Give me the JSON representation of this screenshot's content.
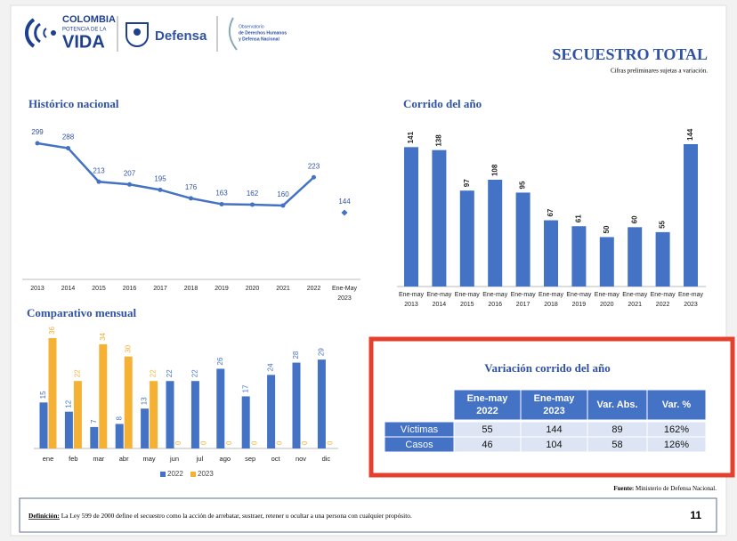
{
  "header": {
    "brand": [
      "COLOMBIA",
      "POTENCIA DE LA",
      "VIDA"
    ],
    "ministry": "Defensa",
    "observatory": [
      "Observatorio",
      "de Derechos Humanos",
      "y Defensa Nacional"
    ],
    "title": "SECUESTRO TOTAL",
    "subtitle": "Cifras preliminares sujetas a variación."
  },
  "chart_data": [
    {
      "type": "line",
      "title": "Histórico nacional",
      "categories": [
        [
          "2013"
        ],
        [
          "2014"
        ],
        [
          "2015"
        ],
        [
          "2016"
        ],
        [
          "2017"
        ],
        [
          "2018"
        ],
        [
          "2019"
        ],
        [
          "2020"
        ],
        [
          "2021"
        ],
        [
          "2022"
        ],
        [
          "Ene-May",
          "2023"
        ]
      ],
      "series": [
        {
          "color": "#4472c4",
          "values": [
            299,
            288,
            213,
            207,
            195,
            176,
            163,
            162,
            160,
            223,
            null
          ]
        },
        {
          "color": "#4472c4",
          "values": [
            null,
            null,
            null,
            null,
            null,
            null,
            null,
            null,
            null,
            null,
            144
          ]
        }
      ]
    },
    {
      "type": "bar",
      "title": "Corrido del año",
      "categories": [
        [
          "Ene-may",
          "2013"
        ],
        [
          "Ene-may",
          "2014"
        ],
        [
          "Ene-may",
          "2015"
        ],
        [
          "Ene-may",
          "2016"
        ],
        [
          "Ene-may",
          "2017"
        ],
        [
          "Ene-may",
          "2018"
        ],
        [
          "Ene-may",
          "2019"
        ],
        [
          "Ene-may",
          "2020"
        ],
        [
          "Ene-may",
          "2021"
        ],
        [
          "Ene-may",
          "2022"
        ],
        [
          "Ene-may",
          "2023"
        ]
      ],
      "series": [
        {
          "color": "#4472c4",
          "values": [
            141,
            138,
            97,
            108,
            95,
            67,
            61,
            50,
            60,
            55,
            144
          ]
        }
      ]
    },
    {
      "type": "bar",
      "title": "Comparativo mensual",
      "legend": "bottom",
      "categories": [
        [
          "ene"
        ],
        [
          "feb"
        ],
        [
          "mar"
        ],
        [
          "abr"
        ],
        [
          "may"
        ],
        [
          "jun"
        ],
        [
          "jul"
        ],
        [
          "ago"
        ],
        [
          "sep"
        ],
        [
          "oct"
        ],
        [
          "nov"
        ],
        [
          "dic"
        ]
      ],
      "series": [
        {
          "name": "2022",
          "color": "#4472c4",
          "values": [
            15,
            12,
            7,
            8,
            13,
            22,
            22,
            26,
            17,
            24,
            28,
            29
          ]
        },
        {
          "name": "2023",
          "color": "#f4b133",
          "values": [
            36,
            22,
            34,
            30,
            22,
            0,
            0,
            0,
            0,
            0,
            0,
            0
          ]
        }
      ]
    }
  ],
  "table": {
    "title": "Variación corrido del año",
    "columns": [
      [
        "Ene-may",
        "2022"
      ],
      [
        "Ene-may",
        "2023"
      ],
      [
        "Var. Abs."
      ],
      [
        "Var. %"
      ]
    ],
    "rows": [
      {
        "label": "Víctimas",
        "cells": [
          "55",
          "144",
          "89",
          "162%"
        ]
      },
      {
        "label": "Casos",
        "cells": [
          "46",
          "104",
          "58",
          "126%"
        ]
      }
    ]
  },
  "source": {
    "label": "Fuente:",
    "text": "Ministerio de Defensa Nacional."
  },
  "footer": {
    "label": "Definición:",
    "text": "La Ley 599 de 2000 define el secuestro como la acción de arrebatar, sustraer, retener u ocultar a una persona con cualquier propósito.",
    "page": "11"
  }
}
